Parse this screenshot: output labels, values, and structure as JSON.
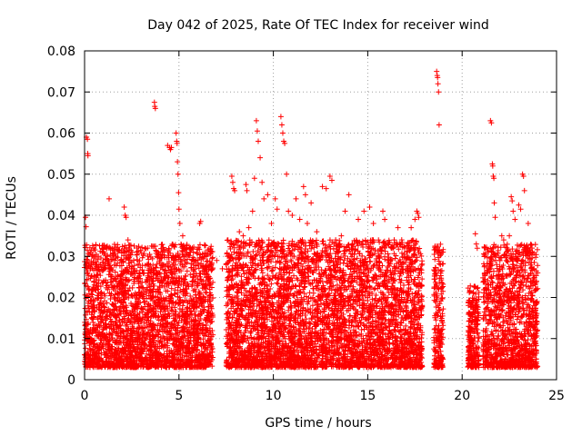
{
  "chart_data": {
    "type": "scatter",
    "title": "Day 042 of 2025, Rate Of TEC Index for receiver wind",
    "xlabel": "GPS time / hours",
    "ylabel": "ROTI / TECUs",
    "xlim": [
      0,
      25
    ],
    "ylim": [
      0,
      0.08
    ],
    "x_ticks": [
      {
        "value": 0,
        "label": "0"
      },
      {
        "value": 5,
        "label": "5"
      },
      {
        "value": 10,
        "label": "10"
      },
      {
        "value": 15,
        "label": "15"
      },
      {
        "value": 20,
        "label": "20"
      },
      {
        "value": 25,
        "label": "25"
      }
    ],
    "y_ticks": [
      {
        "value": 0,
        "label": "0"
      },
      {
        "value": 0.01,
        "label": "0.01"
      },
      {
        "value": 0.02,
        "label": "0.02"
      },
      {
        "value": 0.03,
        "label": "0.03"
      },
      {
        "value": 0.04,
        "label": "0.04"
      },
      {
        "value": 0.05,
        "label": "0.05"
      },
      {
        "value": 0.06,
        "label": "0.06"
      },
      {
        "value": 0.07,
        "label": "0.07"
      },
      {
        "value": 0.08,
        "label": "0.08"
      }
    ],
    "grid": true,
    "marker": "plus",
    "series_color": "#ff0000",
    "series": [
      {
        "points": [
          [
            0.05,
            0.0395
          ],
          [
            0.08,
            0.0372
          ],
          [
            0.1,
            0.059
          ],
          [
            0.15,
            0.0585
          ],
          [
            0.17,
            0.055
          ],
          [
            0.18,
            0.0545
          ],
          [
            0.3,
            0.027
          ],
          [
            0.5,
            0.025
          ],
          [
            0.7,
            0.022
          ],
          [
            0.85,
            0.028
          ],
          [
            1.0,
            0.032
          ],
          [
            1.2,
            0.0325
          ],
          [
            1.3,
            0.044
          ],
          [
            1.6,
            0.029
          ],
          [
            1.9,
            0.025
          ],
          [
            2.1,
            0.042
          ],
          [
            2.15,
            0.04
          ],
          [
            2.2,
            0.0395
          ],
          [
            2.3,
            0.034
          ],
          [
            2.6,
            0.029
          ],
          [
            2.9,
            0.026
          ],
          [
            3.2,
            0.032
          ],
          [
            3.4,
            0.028
          ],
          [
            3.7,
            0.0675
          ],
          [
            3.72,
            0.0665
          ],
          [
            3.75,
            0.066
          ],
          [
            3.9,
            0.031
          ],
          [
            4.1,
            0.028
          ],
          [
            4.3,
            0.025
          ],
          [
            4.4,
            0.057
          ],
          [
            4.5,
            0.0565
          ],
          [
            4.55,
            0.056
          ],
          [
            4.6,
            0.0565
          ],
          [
            4.75,
            0.029
          ],
          [
            4.85,
            0.06
          ],
          [
            4.88,
            0.058
          ],
          [
            4.9,
            0.0575
          ],
          [
            4.92,
            0.053
          ],
          [
            4.95,
            0.05
          ],
          [
            4.98,
            0.0455
          ],
          [
            5.0,
            0.0415
          ],
          [
            5.05,
            0.038
          ],
          [
            5.2,
            0.035
          ],
          [
            5.4,
            0.032
          ],
          [
            5.6,
            0.031
          ],
          [
            5.9,
            0.029
          ],
          [
            6.1,
            0.038
          ],
          [
            6.15,
            0.0385
          ],
          [
            6.3,
            0.024
          ],
          [
            6.6,
            0.023
          ],
          [
            7.0,
            0.029
          ],
          [
            7.3,
            0.027
          ],
          [
            7.5,
            0.028
          ],
          [
            7.7,
            0.03
          ],
          [
            7.8,
            0.0495
          ],
          [
            7.85,
            0.048
          ],
          [
            7.9,
            0.0465
          ],
          [
            7.95,
            0.046
          ],
          [
            8.2,
            0.036
          ],
          [
            8.4,
            0.035
          ],
          [
            8.55,
            0.0475
          ],
          [
            8.6,
            0.046
          ],
          [
            8.7,
            0.037
          ],
          [
            8.9,
            0.041
          ],
          [
            9.0,
            0.049
          ],
          [
            9.1,
            0.063
          ],
          [
            9.15,
            0.0605
          ],
          [
            9.2,
            0.058
          ],
          [
            9.3,
            0.054
          ],
          [
            9.4,
            0.048
          ],
          [
            9.5,
            0.044
          ],
          [
            9.7,
            0.045
          ],
          [
            9.9,
            0.038
          ],
          [
            10.1,
            0.044
          ],
          [
            10.2,
            0.0415
          ],
          [
            10.4,
            0.064
          ],
          [
            10.45,
            0.062
          ],
          [
            10.5,
            0.06
          ],
          [
            10.55,
            0.058
          ],
          [
            10.6,
            0.0575
          ],
          [
            10.7,
            0.05
          ],
          [
            10.8,
            0.041
          ],
          [
            11.0,
            0.04
          ],
          [
            11.2,
            0.044
          ],
          [
            11.4,
            0.039
          ],
          [
            11.6,
            0.047
          ],
          [
            11.7,
            0.045
          ],
          [
            11.8,
            0.038
          ],
          [
            12.0,
            0.043
          ],
          [
            12.3,
            0.036
          ],
          [
            12.6,
            0.047
          ],
          [
            12.8,
            0.0465
          ],
          [
            13.0,
            0.0495
          ],
          [
            13.1,
            0.0485
          ],
          [
            13.3,
            0.034
          ],
          [
            13.6,
            0.035
          ],
          [
            13.8,
            0.041
          ],
          [
            14.0,
            0.045
          ],
          [
            14.2,
            0.033
          ],
          [
            14.5,
            0.039
          ],
          [
            14.8,
            0.041
          ],
          [
            15.1,
            0.042
          ],
          [
            15.3,
            0.038
          ],
          [
            15.6,
            0.03
          ],
          [
            15.8,
            0.041
          ],
          [
            15.9,
            0.039
          ],
          [
            16.1,
            0.029
          ],
          [
            16.4,
            0.034
          ],
          [
            16.6,
            0.037
          ],
          [
            16.8,
            0.034
          ],
          [
            17.0,
            0.0285
          ],
          [
            17.3,
            0.037
          ],
          [
            17.5,
            0.039
          ],
          [
            17.6,
            0.041
          ],
          [
            17.65,
            0.0405
          ],
          [
            17.7,
            0.0395
          ],
          [
            18.65,
            0.075
          ],
          [
            18.68,
            0.074
          ],
          [
            18.7,
            0.0735
          ],
          [
            18.72,
            0.072
          ],
          [
            18.75,
            0.07
          ],
          [
            18.78,
            0.062
          ],
          [
            18.8,
            0.0315
          ],
          [
            18.85,
            0.028
          ],
          [
            20.7,
            0.0355
          ],
          [
            20.75,
            0.033
          ],
          [
            20.8,
            0.032
          ],
          [
            21.5,
            0.063
          ],
          [
            21.55,
            0.0625
          ],
          [
            21.6,
            0.0525
          ],
          [
            21.62,
            0.052
          ],
          [
            21.65,
            0.0495
          ],
          [
            21.68,
            0.049
          ],
          [
            21.7,
            0.043
          ],
          [
            21.75,
            0.0395
          ],
          [
            22.1,
            0.035
          ],
          [
            22.2,
            0.034
          ],
          [
            22.5,
            0.035
          ],
          [
            22.6,
            0.0445
          ],
          [
            22.65,
            0.0435
          ],
          [
            22.7,
            0.041
          ],
          [
            22.8,
            0.039
          ],
          [
            23.0,
            0.0425
          ],
          [
            23.1,
            0.0415
          ],
          [
            23.2,
            0.05
          ],
          [
            23.25,
            0.0495
          ],
          [
            23.3,
            0.046
          ],
          [
            23.5,
            0.038
          ],
          [
            23.8,
            0.027
          ],
          [
            24.0,
            0.026
          ]
        ]
      }
    ]
  }
}
